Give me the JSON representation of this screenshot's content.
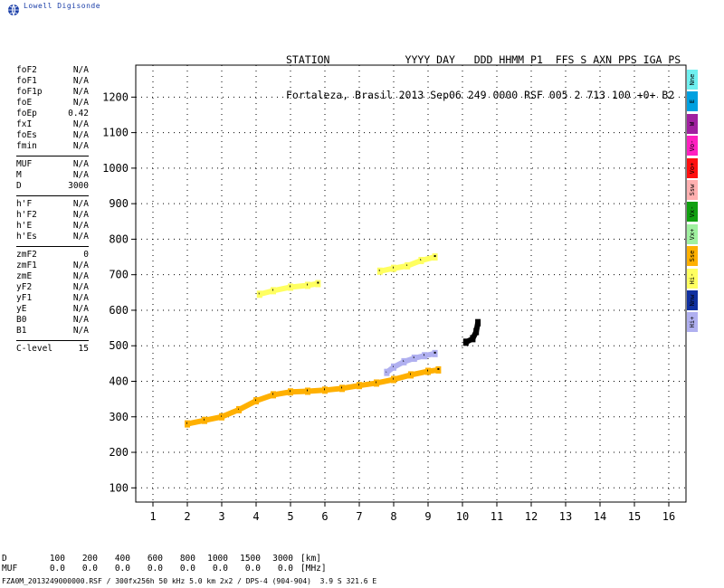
{
  "brand": {
    "name": "Lowell Digisonde",
    "logo_icon": "globe-icon"
  },
  "header": {
    "labels_line": "STATION            YYYY DAY   DDD HHMM P1  FFS S AXN PPS IGA PS",
    "values_line": "Fortaleza, Brasil 2013 Sep06 249 0000 RSF 005 2 713 100 +0+ B2"
  },
  "params": {
    "group1": [
      {
        "name": "foF2",
        "value": "N/A"
      },
      {
        "name": "foF1",
        "value": "N/A"
      },
      {
        "name": "foF1p",
        "value": "N/A"
      },
      {
        "name": "foE",
        "value": "N/A"
      },
      {
        "name": "foEp",
        "value": "0.42"
      },
      {
        "name": "fxI",
        "value": "N/A"
      },
      {
        "name": "foEs",
        "value": "N/A"
      },
      {
        "name": "fmin",
        "value": "N/A"
      }
    ],
    "group2": [
      {
        "name": "MUF",
        "value": "N/A"
      },
      {
        "name": "M",
        "value": "N/A"
      },
      {
        "name": "D",
        "value": "3000"
      }
    ],
    "group3": [
      {
        "name": "h'F",
        "value": "N/A"
      },
      {
        "name": "h'F2",
        "value": "N/A"
      },
      {
        "name": "h'E",
        "value": "N/A"
      },
      {
        "name": "h'Es",
        "value": "N/A"
      }
    ],
    "group4": [
      {
        "name": "zmF2",
        "value": "0"
      },
      {
        "name": "zmF1",
        "value": "N/A"
      },
      {
        "name": "zmE",
        "value": "N/A"
      },
      {
        "name": "yF2",
        "value": "N/A"
      },
      {
        "name": "yF1",
        "value": "N/A"
      },
      {
        "name": "yE",
        "value": "N/A"
      },
      {
        "name": "B0",
        "value": "N/A"
      },
      {
        "name": "B1",
        "value": "N/A"
      }
    ],
    "group5": [
      {
        "name": "C-level",
        "value": "15"
      }
    ]
  },
  "legend": [
    {
      "label": "Nne",
      "color": "#6ff0f0"
    },
    {
      "label": "E",
      "color": "#00a0e0"
    },
    {
      "label": "W",
      "color": "#a020a0"
    },
    {
      "label": "Vo-",
      "color": "#ff20c0"
    },
    {
      "label": "Vo+",
      "color": "#ff1010"
    },
    {
      "label": "Ssw",
      "color": "#ffb0b0"
    },
    {
      "label": "Vx-",
      "color": "#10a010"
    },
    {
      "label": "Vx+",
      "color": "#a0f0a0"
    },
    {
      "label": "Sse",
      "color": "#ffb000"
    },
    {
      "label": "Hi-",
      "color": "#ffff60"
    },
    {
      "label": "Nnw",
      "color": "#1030a0"
    },
    {
      "label": "Hi+",
      "color": "#b0b0f0"
    }
  ],
  "footer": {
    "row1_label": "D",
    "row1": [
      "100",
      "200",
      "400",
      "600",
      "800",
      "1000",
      "1500",
      "3000"
    ],
    "row1_unit": "[km]",
    "row2_label": "MUF",
    "row2": [
      "0.0",
      "0.0",
      "0.0",
      "0.0",
      "0.0",
      "0.0",
      "0.0",
      "0.0"
    ],
    "row2_unit": "[MHz]",
    "file_info": "FZA0M_2013249000000.RSF / 300fx256h 50 kHz 5.0 km 2x2 / DPS-4 (904-904)  3.9 S 321.6 E"
  },
  "chart_data": {
    "type": "scatter",
    "title": "",
    "xlabel": "",
    "ylabel": "",
    "xlim": [
      0.5,
      16.5
    ],
    "ylim": [
      60,
      1290
    ],
    "x_ticks": [
      1,
      2,
      3,
      4,
      5,
      6,
      7,
      8,
      9,
      10,
      11,
      12,
      13,
      14,
      15,
      16
    ],
    "y_ticks": [
      100,
      200,
      300,
      400,
      500,
      600,
      700,
      800,
      900,
      1000,
      1100,
      1200
    ],
    "grid": true,
    "traces": [
      {
        "description": "F-layer O-trace",
        "color": "#ffb000",
        "points": [
          [
            2.0,
            280
          ],
          [
            2.5,
            290
          ],
          [
            3.0,
            300
          ],
          [
            3.5,
            320
          ],
          [
            4.0,
            345
          ],
          [
            4.5,
            362
          ],
          [
            5.0,
            370
          ],
          [
            5.5,
            372
          ],
          [
            6.0,
            375
          ],
          [
            6.5,
            380
          ],
          [
            7.0,
            388
          ],
          [
            7.5,
            395
          ],
          [
            8.0,
            405
          ],
          [
            8.5,
            418
          ],
          [
            9.0,
            428
          ],
          [
            9.3,
            432
          ]
        ]
      },
      {
        "description": "F-layer upper trace",
        "color": "#b0b0f0",
        "points": [
          [
            7.8,
            425
          ],
          [
            8.0,
            440
          ],
          [
            8.3,
            455
          ],
          [
            8.6,
            465
          ],
          [
            8.9,
            472
          ],
          [
            9.2,
            478
          ]
        ]
      },
      {
        "description": "second-hop trace",
        "color": "#ffff60",
        "points": [
          [
            4.1,
            645
          ],
          [
            4.5,
            655
          ],
          [
            5.0,
            665
          ],
          [
            5.5,
            670
          ],
          [
            5.8,
            675
          ]
        ]
      },
      {
        "description": "second-hop high-frequency trace",
        "color": "#ffff60",
        "points": [
          [
            7.6,
            710
          ],
          [
            8.0,
            718
          ],
          [
            8.4,
            725
          ],
          [
            8.8,
            740
          ],
          [
            9.2,
            750
          ]
        ]
      },
      {
        "description": "spread near 10.4 MHz",
        "color": "#000000",
        "points": [
          [
            10.1,
            510
          ],
          [
            10.3,
            520
          ],
          [
            10.4,
            540
          ],
          [
            10.45,
            565
          ]
        ]
      }
    ]
  }
}
